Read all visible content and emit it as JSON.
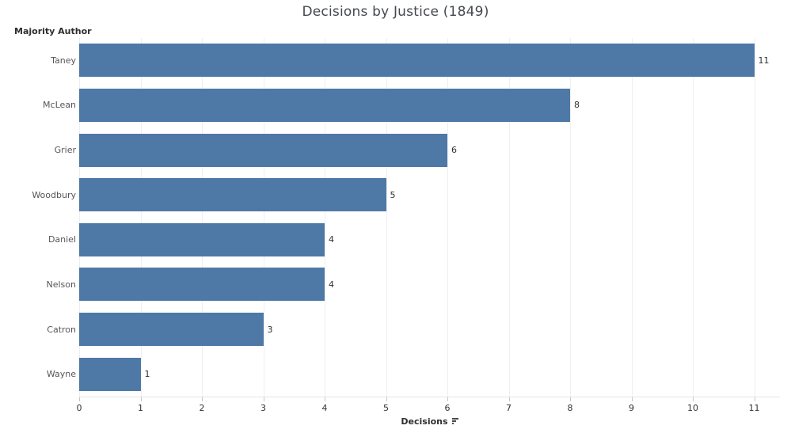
{
  "title": "Decisions by Justice (1849)",
  "row_axis_label": "Majority Author",
  "x_axis_title": "Decisions",
  "sort_indicator": "sort-descending-icon",
  "colors": {
    "bar": "#4e79a7",
    "gridline": "#efefef",
    "title_text": "#45494e",
    "label_text": "#565656",
    "value_text": "#2f2f2f"
  },
  "chart_data": {
    "type": "bar",
    "orientation": "horizontal",
    "title": "Decisions by Justice (1849)",
    "ylabel": "Majority Author",
    "xlabel": "Decisions",
    "categories": [
      "Taney",
      "McLean",
      "Grier",
      "Woodbury",
      "Daniel",
      "Nelson",
      "Catron",
      "Wayne"
    ],
    "values": [
      11,
      8,
      6,
      5,
      4,
      4,
      3,
      1
    ],
    "value_labels": [
      "11",
      "8",
      "6",
      "5",
      "4",
      "4",
      "3",
      "1"
    ],
    "x_ticks": [
      0,
      1,
      2,
      3,
      4,
      5,
      6,
      7,
      8,
      9,
      10,
      11
    ],
    "xlim": [
      0,
      11.4
    ],
    "grid": "vertical-light",
    "legend": "none",
    "sort": "descending"
  }
}
